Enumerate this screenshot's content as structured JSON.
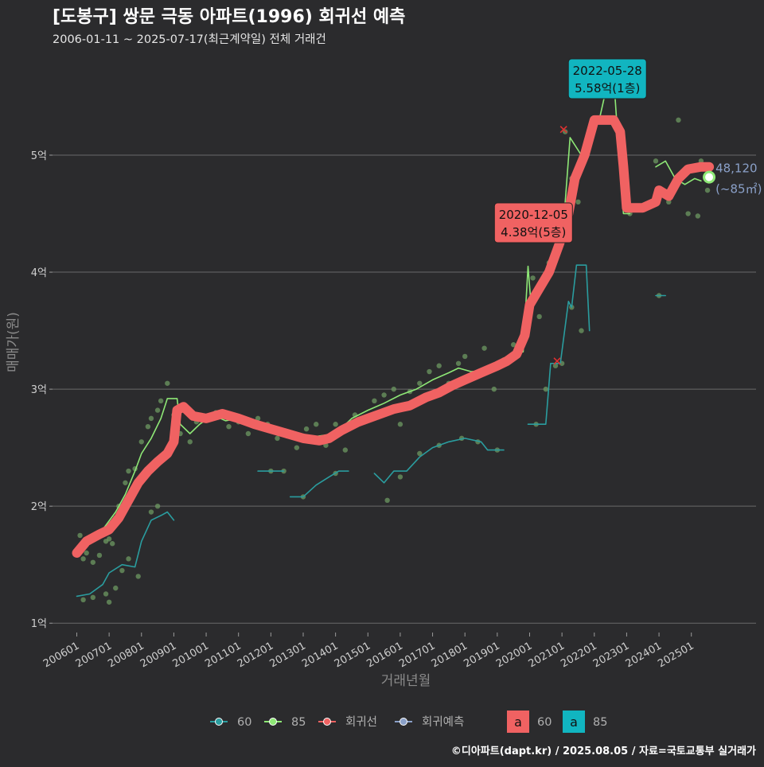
{
  "chart_data": {
    "type": "line",
    "title": "[도봉구] 쌍문 극동 아파트(1996) 회귀선 예측",
    "subtitle": "2006-01-11 ~ 2025-07-17(최근계약일) 전체 거래건",
    "xlabel": "거래년월",
    "ylabel": "매매가(원)",
    "caption": "©디아파트(dapt.kr) / 2025.08.05 / 자료=국토교통부 실거래가",
    "x_ticks": [
      "200601",
      "200701",
      "200801",
      "200901",
      "201001",
      "201101",
      "201201",
      "201301",
      "201401",
      "201501",
      "201601",
      "201701",
      "201801",
      "201901",
      "202001",
      "202101",
      "202201",
      "202301",
      "202401",
      "202501"
    ],
    "y_ticks": [
      {
        "v": 1,
        "label": "1억"
      },
      {
        "v": 2,
        "label": "2억"
      },
      {
        "v": 3,
        "label": "3억"
      },
      {
        "v": 4,
        "label": "4억"
      },
      {
        "v": 5,
        "label": "5억"
      }
    ],
    "xlim": [
      2005.25,
      2027.0
    ],
    "ylim": [
      0.92,
      5.85
    ],
    "grid": true,
    "legend_position": "bottom",
    "colors": {
      "60": "#2a9d9f",
      "85": "#8ee876",
      "regression": "#f06262",
      "forecast": "#8aa0c8"
    },
    "legend": [
      {
        "key": "60",
        "label": "60",
        "color": "#2a9d9f"
      },
      {
        "key": "85",
        "label": "85",
        "color": "#8ee876"
      },
      {
        "key": "regression",
        "label": "회귀선",
        "color": "#f06262"
      },
      {
        "key": "forecast",
        "label": "회귀예측",
        "color": "#8aa0c8"
      }
    ],
    "legend_boxes": [
      {
        "glyph": "a",
        "label": "60",
        "fill": "#f06262"
      },
      {
        "glyph": "a",
        "label": "85",
        "fill": "#11b5c0"
      }
    ],
    "series": [
      {
        "key": "regression",
        "color": "#f06262",
        "points": [
          [
            2006.0,
            1.6
          ],
          [
            2006.3,
            1.7
          ],
          [
            2006.7,
            1.76
          ],
          [
            2007.0,
            1.8
          ],
          [
            2007.3,
            1.9
          ],
          [
            2007.6,
            2.05
          ],
          [
            2007.9,
            2.2
          ],
          [
            2008.2,
            2.3
          ],
          [
            2008.5,
            2.38
          ],
          [
            2008.8,
            2.45
          ],
          [
            2008.9,
            2.5
          ],
          [
            2009.0,
            2.55
          ],
          [
            2009.1,
            2.82
          ],
          [
            2009.3,
            2.85
          ],
          [
            2009.6,
            2.77
          ],
          [
            2010.0,
            2.75
          ],
          [
            2010.5,
            2.79
          ],
          [
            2011.0,
            2.75
          ],
          [
            2011.5,
            2.7
          ],
          [
            2012.0,
            2.66
          ],
          [
            2012.5,
            2.62
          ],
          [
            2013.0,
            2.58
          ],
          [
            2013.5,
            2.56
          ],
          [
            2013.8,
            2.58
          ],
          [
            2014.2,
            2.65
          ],
          [
            2014.7,
            2.72
          ],
          [
            2015.3,
            2.78
          ],
          [
            2015.8,
            2.83
          ],
          [
            2016.3,
            2.86
          ],
          [
            2016.8,
            2.93
          ],
          [
            2017.2,
            2.97
          ],
          [
            2017.6,
            3.03
          ],
          [
            2018.0,
            3.08
          ],
          [
            2018.5,
            3.14
          ],
          [
            2019.0,
            3.2
          ],
          [
            2019.3,
            3.24
          ],
          [
            2019.6,
            3.3
          ],
          [
            2019.85,
            3.46
          ],
          [
            2020.0,
            3.72
          ],
          [
            2020.3,
            3.86
          ],
          [
            2020.6,
            4.0
          ],
          [
            2020.93,
            4.25
          ],
          [
            2021.2,
            4.5
          ],
          [
            2021.4,
            4.8
          ],
          [
            2021.7,
            5.0
          ],
          [
            2022.0,
            5.3
          ],
          [
            2022.3,
            5.3
          ],
          [
            2022.6,
            5.3
          ],
          [
            2022.8,
            5.2
          ],
          [
            2022.9,
            4.9
          ],
          [
            2023.0,
            4.55
          ],
          [
            2023.5,
            4.55
          ],
          [
            2023.9,
            4.6
          ],
          [
            2024.0,
            4.7
          ],
          [
            2024.3,
            4.65
          ],
          [
            2024.6,
            4.8
          ],
          [
            2024.9,
            4.88
          ],
          [
            2025.3,
            4.9
          ],
          [
            2025.55,
            4.9
          ]
        ]
      },
      {
        "key": "85",
        "color": "#8ee876",
        "points": [
          [
            2006.0,
            1.62
          ],
          [
            2006.4,
            1.7
          ],
          [
            2006.8,
            1.8
          ],
          [
            2007.2,
            1.95
          ],
          [
            2007.5,
            2.1
          ],
          [
            2007.8,
            2.3
          ],
          [
            2008.0,
            2.45
          ],
          [
            2008.3,
            2.58
          ],
          [
            2008.6,
            2.75
          ],
          [
            2008.8,
            2.92
          ],
          [
            2009.1,
            2.92
          ],
          [
            2009.2,
            2.7
          ],
          [
            2009.5,
            2.62
          ],
          [
            2009.8,
            2.7
          ],
          [
            2010.2,
            2.78
          ],
          [
            2010.6,
            2.73
          ],
          [
            2011.0,
            2.75
          ],
          [
            2011.5,
            2.7
          ],
          [
            2012.0,
            2.68
          ],
          [
            2012.5,
            2.62
          ],
          [
            2013.0,
            2.58
          ],
          [
            2013.5,
            2.6
          ],
          [
            2014.0,
            2.62
          ],
          [
            2014.5,
            2.75
          ],
          [
            2015.0,
            2.82
          ],
          [
            2015.5,
            2.88
          ],
          [
            2016.0,
            2.95
          ],
          [
            2016.5,
            3.0
          ],
          [
            2017.0,
            3.08
          ],
          [
            2017.5,
            3.14
          ],
          [
            2017.8,
            3.18
          ],
          [
            2018.2,
            3.15
          ],
          [
            2018.6,
            3.16
          ],
          [
            2019.0,
            3.22
          ],
          [
            2019.4,
            3.28
          ],
          [
            2019.8,
            3.32
          ],
          [
            2019.95,
            4.05
          ],
          [
            2020.05,
            3.7
          ],
          [
            2020.3,
            3.86
          ],
          [
            2020.6,
            4.0
          ],
          [
            2020.93,
            4.38
          ],
          [
            2021.1,
            4.6
          ],
          [
            2021.25,
            5.15
          ],
          [
            2021.6,
            5.0
          ],
          [
            2021.75,
            5.0
          ],
          [
            2021.9,
            5.3
          ],
          [
            2022.15,
            5.3
          ],
          [
            2022.38,
            5.58
          ],
          [
            2022.62,
            5.58
          ],
          [
            2022.75,
            5.05
          ],
          [
            2022.9,
            4.5
          ],
          [
            2023.1,
            4.5
          ]
        ]
      },
      {
        "key": "85b",
        "color": "#8ee876",
        "points": [
          [
            2023.9,
            4.9
          ],
          [
            2024.2,
            4.95
          ],
          [
            2024.5,
            4.8
          ],
          [
            2024.8,
            4.75
          ],
          [
            2025.1,
            4.8
          ],
          [
            2025.3,
            4.78
          ]
        ]
      },
      {
        "key": "60",
        "color": "#2a9d9f",
        "points": [
          [
            2006.0,
            1.23
          ],
          [
            2006.4,
            1.25
          ],
          [
            2006.8,
            1.33
          ],
          [
            2007.0,
            1.43
          ],
          [
            2007.4,
            1.5
          ],
          [
            2007.8,
            1.48
          ],
          [
            2008.0,
            1.7
          ],
          [
            2008.3,
            1.88
          ],
          [
            2008.6,
            1.92
          ],
          [
            2008.8,
            1.95
          ],
          [
            2009.0,
            1.88
          ]
        ]
      },
      {
        "key": "60b",
        "color": "#2a9d9f",
        "points": [
          [
            2011.6,
            2.3
          ],
          [
            2012.4,
            2.3
          ]
        ]
      },
      {
        "key": "60c",
        "color": "#2a9d9f",
        "points": [
          [
            2012.6,
            2.08
          ],
          [
            2013.0,
            2.08
          ],
          [
            2013.4,
            2.18
          ],
          [
            2013.8,
            2.25
          ],
          [
            2014.1,
            2.3
          ],
          [
            2014.4,
            2.3
          ]
        ]
      },
      {
        "key": "60d",
        "color": "#2a9d9f",
        "points": [
          [
            2015.2,
            2.28
          ],
          [
            2015.5,
            2.2
          ],
          [
            2015.8,
            2.3
          ],
          [
            2016.2,
            2.3
          ],
          [
            2016.6,
            2.42
          ],
          [
            2017.0,
            2.5
          ],
          [
            2017.5,
            2.55
          ],
          [
            2018.0,
            2.58
          ],
          [
            2018.5,
            2.55
          ],
          [
            2018.7,
            2.48
          ],
          [
            2019.2,
            2.48
          ]
        ]
      },
      {
        "key": "60e",
        "color": "#2a9d9f",
        "points": [
          [
            2019.95,
            2.7
          ],
          [
            2020.5,
            2.7
          ],
          [
            2020.65,
            3.22
          ],
          [
            2020.95,
            3.22
          ],
          [
            2021.2,
            3.75
          ],
          [
            2021.3,
            3.7
          ],
          [
            2021.45,
            4.06
          ],
          [
            2021.75,
            4.06
          ],
          [
            2021.85,
            3.5
          ]
        ]
      },
      {
        "key": "60f",
        "color": "#2a9d9f",
        "points": [
          [
            2023.9,
            3.8
          ],
          [
            2024.2,
            3.8
          ]
        ]
      }
    ],
    "forecast": {
      "x": 2025.55,
      "y": 4.812,
      "label_value": "48,120",
      "label_area": "(~85㎡)"
    },
    "annotations": [
      {
        "date": "2022-05-28",
        "price": "5.58억(1층)",
        "x": 2022.38,
        "y": 5.58,
        "fill": "#11b5c0"
      },
      {
        "date": "2020-12-05",
        "price": "4.38억(5층)",
        "x": 2020.93,
        "y": 4.38,
        "fill": "#f06262"
      }
    ],
    "scatter": [
      [
        2006.1,
        1.75
      ],
      [
        2006.2,
        1.55
      ],
      [
        2006.3,
        1.6
      ],
      [
        2006.5,
        1.52
      ],
      [
        2006.7,
        1.58
      ],
      [
        2006.9,
        1.7
      ],
      [
        2007.0,
        1.72
      ],
      [
        2007.1,
        1.68
      ],
      [
        2007.2,
        1.9
      ],
      [
        2007.3,
        2.0
      ],
      [
        2007.5,
        2.2
      ],
      [
        2007.6,
        2.3
      ],
      [
        2007.8,
        2.32
      ],
      [
        2008.0,
        2.55
      ],
      [
        2008.2,
        2.68
      ],
      [
        2008.3,
        2.75
      ],
      [
        2008.5,
        2.82
      ],
      [
        2008.6,
        2.9
      ],
      [
        2008.8,
        3.05
      ],
      [
        2009.0,
        2.78
      ],
      [
        2009.2,
        2.62
      ],
      [
        2009.5,
        2.55
      ],
      [
        2009.7,
        2.72
      ],
      [
        2010.0,
        2.75
      ],
      [
        2010.3,
        2.8
      ],
      [
        2010.7,
        2.68
      ],
      [
        2011.0,
        2.72
      ],
      [
        2011.3,
        2.62
      ],
      [
        2011.6,
        2.75
      ],
      [
        2011.9,
        2.7
      ],
      [
        2012.2,
        2.58
      ],
      [
        2012.5,
        2.6
      ],
      [
        2012.8,
        2.5
      ],
      [
        2013.1,
        2.66
      ],
      [
        2013.4,
        2.7
      ],
      [
        2013.7,
        2.52
      ],
      [
        2014.0,
        2.7
      ],
      [
        2014.3,
        2.48
      ],
      [
        2014.6,
        2.78
      ],
      [
        2014.9,
        2.72
      ],
      [
        2015.2,
        2.9
      ],
      [
        2015.5,
        2.95
      ],
      [
        2015.8,
        3.0
      ],
      [
        2016.0,
        2.7
      ],
      [
        2016.3,
        2.98
      ],
      [
        2016.6,
        3.05
      ],
      [
        2016.9,
        3.15
      ],
      [
        2017.2,
        3.2
      ],
      [
        2017.5,
        3.05
      ],
      [
        2017.8,
        3.22
      ],
      [
        2018.0,
        3.28
      ],
      [
        2018.3,
        3.1
      ],
      [
        2018.6,
        3.35
      ],
      [
        2018.9,
        3.0
      ],
      [
        2019.2,
        3.25
      ],
      [
        2019.5,
        3.38
      ],
      [
        2019.8,
        3.48
      ],
      [
        2020.1,
        3.95
      ],
      [
        2020.3,
        3.62
      ],
      [
        2020.6,
        4.08
      ],
      [
        2020.9,
        4.2
      ],
      [
        2021.1,
        5.2
      ],
      [
        2021.3,
        4.8
      ],
      [
        2021.5,
        4.6
      ],
      [
        2022.2,
        5.6
      ],
      [
        2022.6,
        5.3
      ],
      [
        2023.1,
        4.5
      ],
      [
        2023.9,
        4.95
      ],
      [
        2024.3,
        4.6
      ],
      [
        2024.6,
        5.3
      ],
      [
        2024.9,
        4.5
      ],
      [
        2025.2,
        4.48
      ],
      [
        2025.3,
        4.95
      ],
      [
        2025.5,
        4.7
      ],
      [
        2006.2,
        1.2
      ],
      [
        2006.5,
        1.22
      ],
      [
        2006.9,
        1.25
      ],
      [
        2007.0,
        1.18
      ],
      [
        2007.2,
        1.3
      ],
      [
        2007.4,
        1.45
      ],
      [
        2007.6,
        1.55
      ],
      [
        2007.9,
        1.4
      ],
      [
        2008.3,
        1.95
      ],
      [
        2008.5,
        2.0
      ],
      [
        2012.0,
        2.3
      ],
      [
        2012.4,
        2.3
      ],
      [
        2013.0,
        2.08
      ],
      [
        2014.0,
        2.28
      ],
      [
        2015.6,
        2.05
      ],
      [
        2016.0,
        2.25
      ],
      [
        2016.6,
        2.45
      ],
      [
        2017.2,
        2.52
      ],
      [
        2017.9,
        2.58
      ],
      [
        2018.4,
        2.55
      ],
      [
        2019.0,
        2.48
      ],
      [
        2020.2,
        2.7
      ],
      [
        2020.5,
        3.0
      ],
      [
        2020.8,
        3.2
      ],
      [
        2021.0,
        3.22
      ],
      [
        2021.3,
        3.7
      ],
      [
        2021.6,
        3.5
      ],
      [
        2024.0,
        3.8
      ]
    ]
  }
}
